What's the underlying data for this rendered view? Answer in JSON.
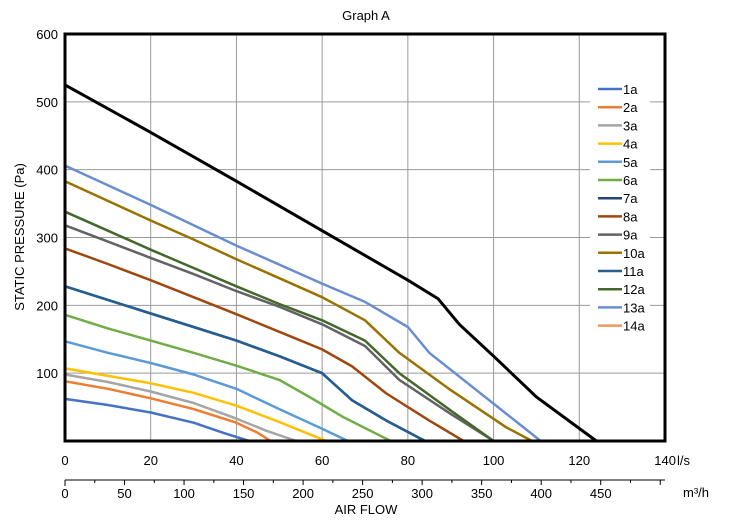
{
  "chart_data": {
    "type": "line",
    "title": "Graph A",
    "ylabel": "STATIC PRESSURE (Pa)",
    "xlabel": "AIR FLOW",
    "x_unit_primary": "l/s",
    "x_unit_secondary": "m³/h",
    "xlim": [
      0,
      140
    ],
    "ylim": [
      0,
      600
    ],
    "x_ticks": [
      0,
      20,
      40,
      60,
      80,
      100,
      120,
      140
    ],
    "y_ticks": [
      100,
      200,
      300,
      400,
      500,
      600
    ],
    "x2_ticks": [
      0,
      50,
      100,
      150,
      200,
      250,
      300,
      350,
      400,
      450
    ],
    "x2_lim": [
      0,
      504
    ],
    "grid": true,
    "legend_position": "right",
    "max_curve": {
      "color": "#000000",
      "points": [
        [
          0,
          525
        ],
        [
          20,
          455
        ],
        [
          40,
          383
        ],
        [
          60,
          310
        ],
        [
          80,
          237
        ],
        [
          87,
          210
        ],
        [
          92,
          172
        ],
        [
          100,
          125
        ],
        [
          110,
          65
        ],
        [
          124,
          0
        ]
      ]
    },
    "series": [
      {
        "name": "1a",
        "color": "#4472C4",
        "points": [
          [
            0,
            62
          ],
          [
            10,
            53
          ],
          [
            20,
            42
          ],
          [
            30,
            27
          ],
          [
            37,
            12
          ],
          [
            43,
            0
          ]
        ]
      },
      {
        "name": "2a",
        "color": "#ED7D31",
        "points": [
          [
            0,
            88
          ],
          [
            10,
            77
          ],
          [
            20,
            63
          ],
          [
            30,
            47
          ],
          [
            40,
            27
          ],
          [
            45,
            12
          ],
          [
            48,
            0
          ]
        ]
      },
      {
        "name": "3a",
        "color": "#A5A5A5",
        "points": [
          [
            0,
            98
          ],
          [
            10,
            87
          ],
          [
            20,
            73
          ],
          [
            30,
            56
          ],
          [
            40,
            33
          ],
          [
            47,
            15
          ],
          [
            54,
            0
          ]
        ]
      },
      {
        "name": "4a",
        "color": "#FFC000",
        "points": [
          [
            0,
            107
          ],
          [
            10,
            96
          ],
          [
            20,
            85
          ],
          [
            30,
            71
          ],
          [
            40,
            52
          ],
          [
            50,
            28
          ],
          [
            57,
            10
          ],
          [
            61,
            0
          ]
        ]
      },
      {
        "name": "5a",
        "color": "#5B9BD5",
        "points": [
          [
            0,
            147
          ],
          [
            10,
            130
          ],
          [
            20,
            115
          ],
          [
            30,
            98
          ],
          [
            40,
            77
          ],
          [
            50,
            47
          ],
          [
            60,
            18
          ],
          [
            66,
            0
          ]
        ]
      },
      {
        "name": "6a",
        "color": "#70AD47",
        "points": [
          [
            0,
            186
          ],
          [
            10,
            166
          ],
          [
            20,
            148
          ],
          [
            30,
            130
          ],
          [
            40,
            111
          ],
          [
            50,
            90
          ],
          [
            57,
            65
          ],
          [
            65,
            35
          ],
          [
            76,
            0
          ]
        ]
      },
      {
        "name": "7a",
        "color": "#264478",
        "points": [
          [
            0,
            228
          ],
          [
            10,
            208
          ],
          [
            20,
            188
          ],
          [
            30,
            168
          ],
          [
            40,
            148
          ],
          [
            50,
            125
          ],
          [
            60,
            100
          ],
          [
            67,
            60
          ],
          [
            75,
            30
          ],
          [
            84,
            0
          ]
        ]
      },
      {
        "name": "8a",
        "color": "#9E480E",
        "points": [
          [
            0,
            284
          ],
          [
            10,
            261
          ],
          [
            20,
            237
          ],
          [
            30,
            212
          ],
          [
            40,
            187
          ],
          [
            50,
            161
          ],
          [
            60,
            135
          ],
          [
            67,
            110
          ],
          [
            75,
            70
          ],
          [
            85,
            30
          ],
          [
            93,
            0
          ]
        ]
      },
      {
        "name": "9a",
        "color": "#636363",
        "points": [
          [
            0,
            318
          ],
          [
            10,
            294
          ],
          [
            20,
            270
          ],
          [
            30,
            246
          ],
          [
            40,
            221
          ],
          [
            50,
            198
          ],
          [
            60,
            172
          ],
          [
            70,
            140
          ],
          [
            78,
            90
          ],
          [
            90,
            40
          ],
          [
            100,
            0
          ]
        ]
      },
      {
        "name": "10a",
        "color": "#997300",
        "points": [
          [
            0,
            383
          ],
          [
            10,
            354
          ],
          [
            20,
            325
          ],
          [
            30,
            297
          ],
          [
            40,
            268
          ],
          [
            50,
            240
          ],
          [
            60,
            212
          ],
          [
            70,
            178
          ],
          [
            78,
            130
          ],
          [
            90,
            75
          ],
          [
            103,
            20
          ],
          [
            109,
            0
          ]
        ]
      },
      {
        "name": "11a",
        "color": "#255E91",
        "points": [
          [
            0,
            228
          ],
          [
            10,
            208
          ],
          [
            20,
            188
          ],
          [
            30,
            168
          ],
          [
            40,
            148
          ],
          [
            50,
            125
          ],
          [
            60,
            100
          ],
          [
            67,
            60
          ],
          [
            75,
            30
          ],
          [
            84,
            0
          ]
        ]
      },
      {
        "name": "12a",
        "color": "#43682B",
        "points": [
          [
            0,
            338
          ],
          [
            10,
            310
          ],
          [
            20,
            282
          ],
          [
            30,
            255
          ],
          [
            40,
            228
          ],
          [
            50,
            202
          ],
          [
            60,
            178
          ],
          [
            70,
            148
          ],
          [
            78,
            100
          ],
          [
            90,
            45
          ],
          [
            100,
            0
          ]
        ]
      },
      {
        "name": "13a",
        "color": "#698ED0",
        "points": [
          [
            0,
            406
          ],
          [
            10,
            377
          ],
          [
            20,
            348
          ],
          [
            30,
            318
          ],
          [
            40,
            288
          ],
          [
            50,
            260
          ],
          [
            60,
            232
          ],
          [
            70,
            205
          ],
          [
            80,
            168
          ],
          [
            85,
            130
          ],
          [
            95,
            80
          ],
          [
            105,
            30
          ],
          [
            111,
            0
          ]
        ]
      },
      {
        "name": "14a",
        "color": "#F1975A",
        "points": []
      }
    ]
  }
}
